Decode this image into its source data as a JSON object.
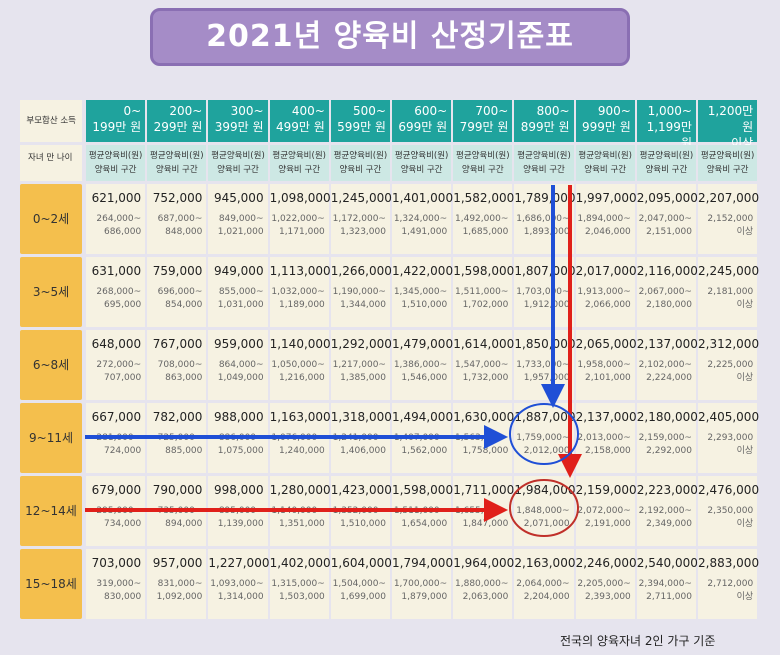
{
  "title": "2021년 양육비 산정기준표",
  "table": {
    "corner": {
      "income": "부모합산 소득",
      "age": "자녀 만 나이"
    },
    "columns": [
      [
        "0~",
        "199만 원"
      ],
      [
        "200~",
        "299만 원"
      ],
      [
        "300~",
        "399만 원"
      ],
      [
        "400~",
        "499만 원"
      ],
      [
        "500~",
        "599만 원"
      ],
      [
        "600~",
        "699만 원"
      ],
      [
        "700~",
        "799만 원"
      ],
      [
        "800~",
        "899만 원"
      ],
      [
        "900~",
        "999만 원"
      ],
      [
        "1,000~",
        "1,199만 원"
      ],
      [
        "1,200만 원",
        "이상"
      ]
    ],
    "subheader": {
      "avg": "평균양육비(원)",
      "range": "양육비 구간"
    },
    "rows": [
      {
        "age": "0~2세",
        "avg": [
          "621,000",
          "752,000",
          "945,000",
          "1,098,000",
          "1,245,000",
          "1,401,000",
          "1,582,000",
          "1,789,000",
          "1,997,000",
          "2,095,000",
          "2,207,000"
        ],
        "range": [
          [
            "264,000~",
            "686,000"
          ],
          [
            "687,000~",
            "848,000"
          ],
          [
            "849,000~",
            "1,021,000"
          ],
          [
            "1,022,000~",
            "1,171,000"
          ],
          [
            "1,172,000~",
            "1,323,000"
          ],
          [
            "1,324,000~",
            "1,491,000"
          ],
          [
            "1,492,000~",
            "1,685,000"
          ],
          [
            "1,686,000~",
            "1,893,000"
          ],
          [
            "1,894,000~",
            "2,046,000"
          ],
          [
            "2,047,000~",
            "2,151,000"
          ],
          [
            "2,152,000",
            "이상"
          ]
        ]
      },
      {
        "age": "3~5세",
        "avg": [
          "631,000",
          "759,000",
          "949,000",
          "1,113,000",
          "1,266,000",
          "1,422,000",
          "1,598,000",
          "1,807,000",
          "2,017,000",
          "2,116,000",
          "2,245,000"
        ],
        "range": [
          [
            "268,000~",
            "695,000"
          ],
          [
            "696,000~",
            "854,000"
          ],
          [
            "855,000~",
            "1,031,000"
          ],
          [
            "1,032,000~",
            "1,189,000"
          ],
          [
            "1,190,000~",
            "1,344,000"
          ],
          [
            "1,345,000~",
            "1,510,000"
          ],
          [
            "1,511,000~",
            "1,702,000"
          ],
          [
            "1,703,000~",
            "1,912,000"
          ],
          [
            "1,913,000~",
            "2,066,000"
          ],
          [
            "2,067,000~",
            "2,180,000"
          ],
          [
            "2,181,000",
            "이상"
          ]
        ]
      },
      {
        "age": "6~8세",
        "avg": [
          "648,000",
          "767,000",
          "959,000",
          "1,140,000",
          "1,292,000",
          "1,479,000",
          "1,614,000",
          "1,850,000",
          "2,065,000",
          "2,137,000",
          "2,312,000"
        ],
        "range": [
          [
            "272,000~",
            "707,000"
          ],
          [
            "708,000~",
            "863,000"
          ],
          [
            "864,000~",
            "1,049,000"
          ],
          [
            "1,050,000~",
            "1,216,000"
          ],
          [
            "1,217,000~",
            "1,385,000"
          ],
          [
            "1,386,000~",
            "1,546,000"
          ],
          [
            "1,547,000~",
            "1,732,000"
          ],
          [
            "1,733,000~",
            "1,957,000"
          ],
          [
            "1,958,000~",
            "2,101,000"
          ],
          [
            "2,102,000~",
            "2,224,000"
          ],
          [
            "2,225,000",
            "이상"
          ]
        ]
      },
      {
        "age": "9~11세",
        "avg": [
          "667,000",
          "782,000",
          "988,000",
          "1,163,000",
          "1,318,000",
          "1,494,000",
          "1,630,000",
          "1,887,000",
          "2,137,000",
          "2,180,000",
          "2,405,000"
        ],
        "range": [
          [
            "281,000~",
            "724,000"
          ],
          [
            "725,000~",
            "885,000"
          ],
          [
            "886,000~",
            "1,075,000"
          ],
          [
            "1,076,000~",
            "1,240,000"
          ],
          [
            "1,241,000~",
            "1,406,000"
          ],
          [
            "1,407,000~",
            "1,562,000"
          ],
          [
            "1,563,000~",
            "1,758,000"
          ],
          [
            "1,759,000~",
            "2,012,000"
          ],
          [
            "2,013,000~",
            "2,158,000"
          ],
          [
            "2,159,000~",
            "2,292,000"
          ],
          [
            "2,293,000",
            "이상"
          ]
        ]
      },
      {
        "age": "12~14세",
        "avg": [
          "679,000",
          "790,000",
          "998,000",
          "1,280,000",
          "1,423,000",
          "1,598,000",
          "1,711,000",
          "1,984,000",
          "2,159,000",
          "2,223,000",
          "2,476,000"
        ],
        "range": [
          [
            "295,000~",
            "734,000"
          ],
          [
            "735,000~",
            "894,000"
          ],
          [
            "895,000~",
            "1,139,000"
          ],
          [
            "1,140,000~",
            "1,351,000"
          ],
          [
            "1,352,000~",
            "1,510,000"
          ],
          [
            "1,511,000~",
            "1,654,000"
          ],
          [
            "1,655,000~",
            "1,847,000"
          ],
          [
            "1,848,000~",
            "2,071,000"
          ],
          [
            "2,072,000~",
            "2,191,000"
          ],
          [
            "2,192,000~",
            "2,349,000"
          ],
          [
            "2,350,000",
            "이상"
          ]
        ]
      },
      {
        "age": "15~18세",
        "avg": [
          "703,000",
          "957,000",
          "1,227,000",
          "1,402,000",
          "1,604,000",
          "1,794,000",
          "1,964,000",
          "2,163,000",
          "2,246,000",
          "2,540,000",
          "2,883,000"
        ],
        "range": [
          [
            "319,000~",
            "830,000"
          ],
          [
            "831,000~",
            "1,092,000"
          ],
          [
            "1,093,000~",
            "1,314,000"
          ],
          [
            "1,315,000~",
            "1,503,000"
          ],
          [
            "1,504,000~",
            "1,699,000"
          ],
          [
            "1,700,000~",
            "1,879,000"
          ],
          [
            "1,880,000~",
            "2,063,000"
          ],
          [
            "2,064,000~",
            "2,204,000"
          ],
          [
            "2,205,000~",
            "2,393,000"
          ],
          [
            "2,394,000~",
            "2,711,000"
          ],
          [
            "2,712,000",
            "이상"
          ]
        ]
      }
    ]
  },
  "note": "전국의 양육자녀 2인 가구 기준"
}
